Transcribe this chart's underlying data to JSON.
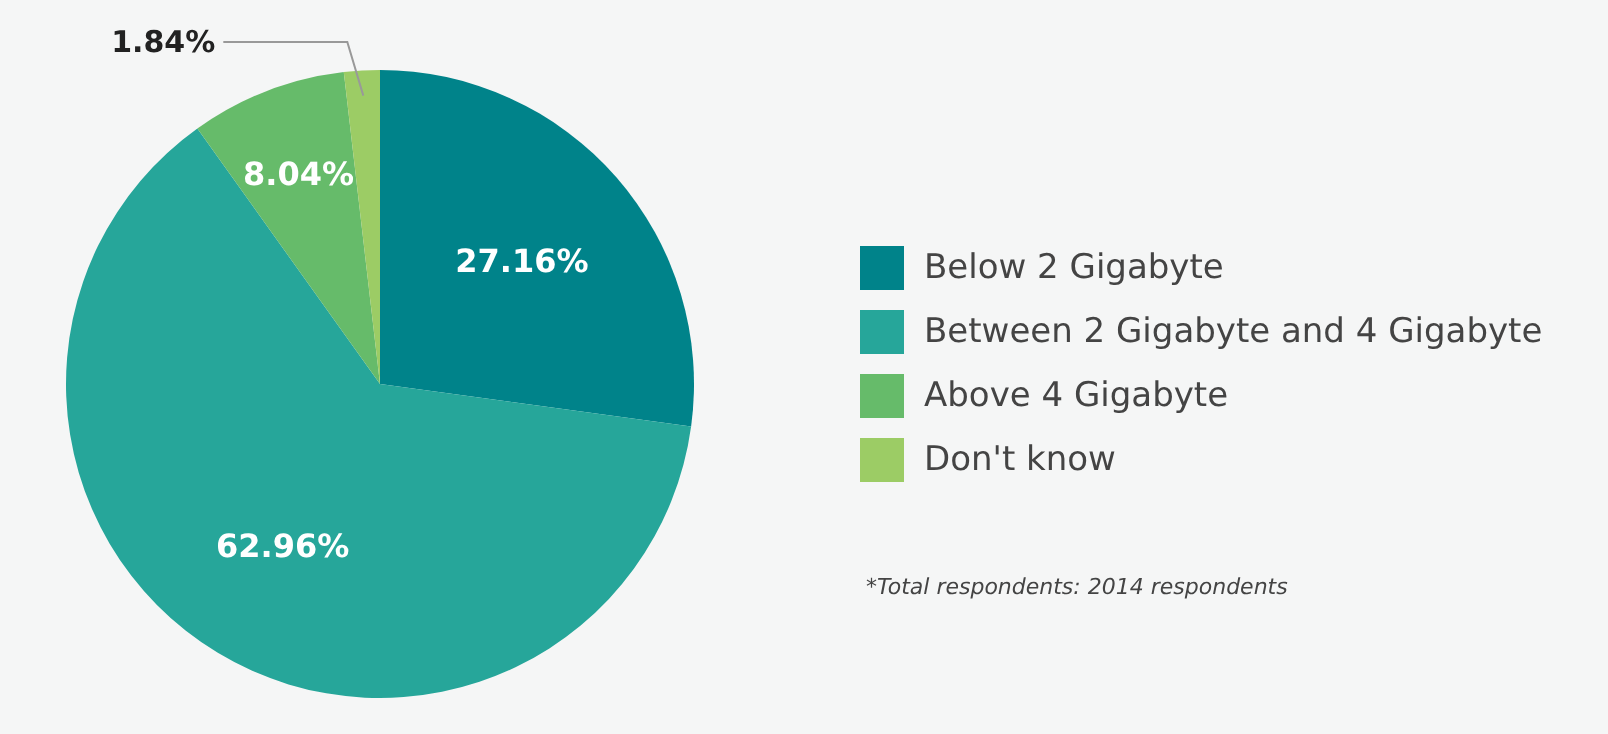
{
  "chart_data": {
    "type": "pie",
    "categories": [
      "Below 2 Gigabyte",
      "Between 2 Gigabyte and 4 Gigabyte",
      "Above 4 Gigabyte",
      "Don't know"
    ],
    "values": [
      27.16,
      62.96,
      8.04,
      1.84
    ],
    "value_labels": [
      "27.16%",
      "62.96%",
      "8.04%",
      "1.84%"
    ],
    "colors": [
      "#00838a",
      "#26a69a",
      "#66bb6a",
      "#9ccc65"
    ],
    "legend": "right",
    "annotations": [
      "*Total respondents: 2014 respondents"
    ]
  }
}
